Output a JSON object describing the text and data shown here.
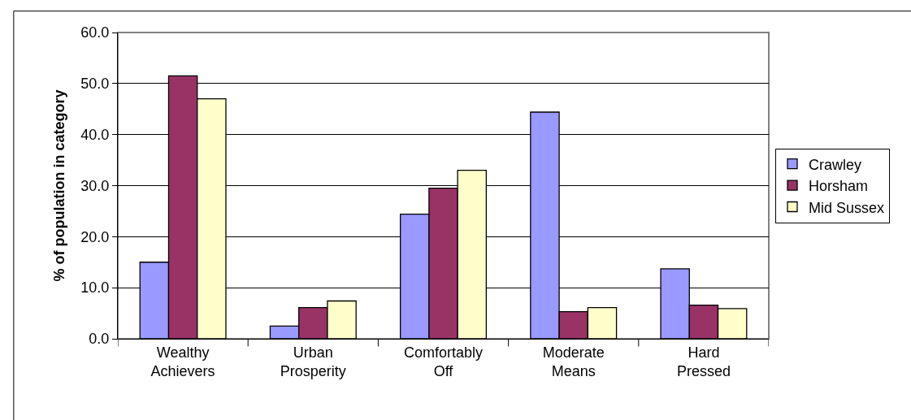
{
  "chart_data": {
    "type": "bar",
    "ylabel": "% of population in category",
    "categories": [
      "Wealthy\nAchievers",
      "Urban\nProsperity",
      "Comfortably\nOff",
      "Moderate\nMeans",
      "Hard\nPressed"
    ],
    "series": [
      {
        "name": "Crawley",
        "color": "#9999ff",
        "values": [
          15.0,
          2.5,
          24.4,
          44.4,
          13.7
        ]
      },
      {
        "name": "Horsham",
        "color": "#993366",
        "values": [
          51.5,
          6.1,
          29.5,
          5.3,
          6.6
        ]
      },
      {
        "name": "Mid Sussex",
        "color": "#ffffcc",
        "values": [
          47.0,
          7.4,
          33.0,
          6.1,
          5.9
        ]
      }
    ],
    "ylim": [
      0,
      60
    ],
    "yticks": [
      {
        "value": 0,
        "label": "0.0"
      },
      {
        "value": 10,
        "label": "10.0"
      },
      {
        "value": 20,
        "label": "20.0"
      },
      {
        "value": 30,
        "label": "30.0"
      },
      {
        "value": 40,
        "label": "40.0"
      },
      {
        "value": 50,
        "label": "50.0"
      },
      {
        "value": 60,
        "label": "60.0"
      }
    ],
    "grid": "y",
    "legend": "right"
  }
}
